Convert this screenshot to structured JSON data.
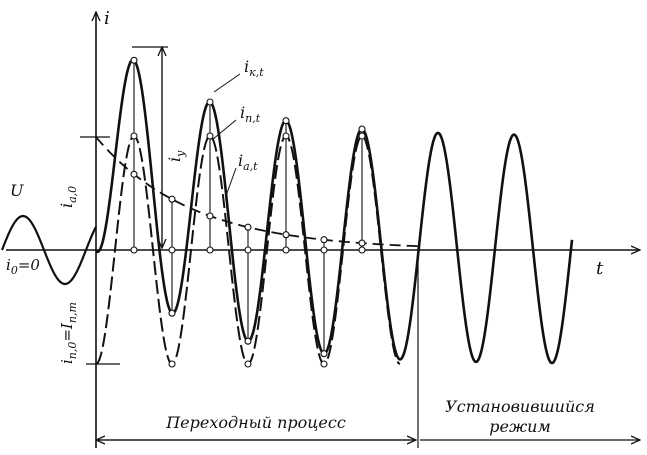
{
  "labels": {
    "axis_i": "i",
    "axis_t": "t",
    "voltage": "U",
    "i_zero": "i",
    "i_zero_sub": "0",
    "i_zero_eq": "=0",
    "ik": "i",
    "ik_sub": "к,t",
    "in": "i",
    "in_sub": "п,t",
    "ia": "i",
    "ia_sub": "a,t",
    "iy": "i",
    "iy_sub": "у",
    "ia0": "i",
    "ia0_sub": "a,0",
    "in0": "i",
    "in0_sub": "п,0",
    "in0_eq": "=I",
    "in0_eq_sub": "п,m",
    "transient": "Переходный процесс",
    "steady_1": "Установившийся",
    "steady_2": "режим"
  },
  "colors": {
    "ink": "#111111",
    "background": "#ffffff"
  }
}
